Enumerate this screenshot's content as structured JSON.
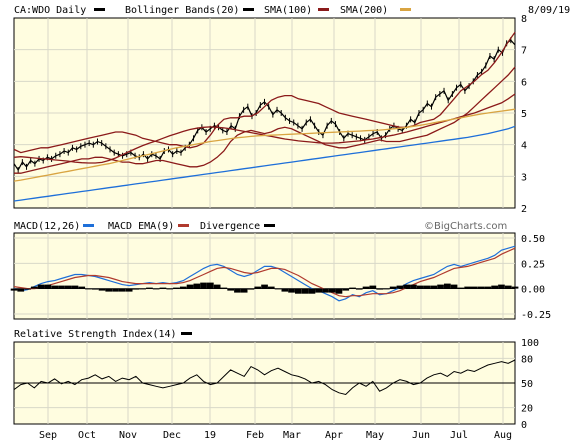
{
  "chart_data": {
    "type": "line",
    "symbol_label": "CA:WDO Daily",
    "date_label": "8/09/19",
    "watermark": "©BigCharts.com",
    "months": [
      "Sep",
      "Oct",
      "Nov",
      "Dec",
      "19",
      "Feb",
      "Mar",
      "Apr",
      "May",
      "Jun",
      "Jul",
      "Aug"
    ],
    "colors": {
      "price": "#000000",
      "bollinger": "#8b1a1a",
      "sma100": "#8b1a1a",
      "sma200": "#d9a441",
      "macd": "#1e6fd9",
      "macd_ema": "#b03a2e",
      "divergence": "#000000",
      "panel_bg": "#fffde0",
      "grid": "#d8d8c8"
    },
    "price_panel": {
      "ylim": [
        2,
        8
      ],
      "yticks": [
        2,
        3,
        4,
        5,
        6,
        7,
        8
      ],
      "legend": [
        {
          "label": "Bollinger Bands(20)",
          "key": "bollinger"
        },
        {
          "label": "SMA(100)",
          "key": "sma100"
        },
        {
          "label": "SMA(200)",
          "key": "sma200"
        }
      ],
      "series": [
        {
          "key": "price",
          "values": [
            3.4,
            3.2,
            3.45,
            3.3,
            3.5,
            3.4,
            3.55,
            3.5,
            3.6,
            3.55,
            3.65,
            3.7,
            3.8,
            3.75,
            3.9,
            3.85,
            3.95,
            4.0,
            4.05,
            4.0,
            4.1,
            4.05,
            3.95,
            3.85,
            3.75,
            3.7,
            3.65,
            3.7,
            3.75,
            3.65,
            3.6,
            3.7,
            3.55,
            3.7,
            3.65,
            3.55,
            3.8,
            3.85,
            3.7,
            3.8,
            3.75,
            3.9,
            4.0,
            4.2,
            4.45,
            4.55,
            4.4,
            4.5,
            4.6,
            4.55,
            4.45,
            4.4,
            4.6,
            4.5,
            4.9,
            5.1,
            5.2,
            4.9,
            5.0,
            5.25,
            5.35,
            5.2,
            4.95,
            5.1,
            5.0,
            4.85,
            4.75,
            4.7,
            4.6,
            4.5,
            4.7,
            4.8,
            4.6,
            4.4,
            4.3,
            4.6,
            4.75,
            4.65,
            4.4,
            4.2,
            4.35,
            4.3,
            4.25,
            4.2,
            4.15,
            4.25,
            4.35,
            4.4,
            4.2,
            4.3,
            4.5,
            4.6,
            4.5,
            4.45,
            4.6,
            4.8,
            4.7,
            5.0,
            5.1,
            5.3,
            5.2,
            5.5,
            5.6,
            5.7,
            5.4,
            5.6,
            5.8,
            5.9,
            5.7,
            5.85,
            6.0,
            6.2,
            6.3,
            6.5,
            6.8,
            6.7,
            7.0,
            6.9,
            7.2,
            7.3,
            7.15
          ]
        },
        {
          "key": "bollinger",
          "values": [
            3.85,
            3.75,
            3.8,
            3.85,
            3.9,
            3.9,
            3.95,
            4.0,
            4.05,
            4.1,
            4.15,
            4.2,
            4.25,
            4.3,
            4.35,
            4.4,
            4.4,
            4.35,
            4.3,
            4.2,
            4.15,
            4.1,
            4.05,
            4.0,
            4.0,
            3.95,
            3.9,
            3.95,
            4.05,
            4.3,
            4.6,
            4.8,
            4.85,
            4.85,
            4.9,
            4.9,
            5.0,
            5.2,
            5.4,
            5.5,
            5.55,
            5.55,
            5.45,
            5.4,
            5.35,
            5.3,
            5.2,
            5.1,
            5.0,
            4.95,
            4.9,
            4.85,
            4.8,
            4.75,
            4.7,
            4.65,
            4.6,
            4.55,
            4.55,
            4.6,
            4.7,
            4.75,
            4.8,
            4.95,
            5.2,
            5.45,
            5.7,
            5.85,
            6.0,
            6.2,
            6.35,
            6.6,
            6.9,
            7.25,
            7.55
          ]
        },
        {
          "key": "bollinger",
          "values": [
            3.1,
            3.1,
            3.15,
            3.2,
            3.25,
            3.3,
            3.35,
            3.4,
            3.45,
            3.5,
            3.55,
            3.55,
            3.6,
            3.6,
            3.55,
            3.5,
            3.45,
            3.45,
            3.4,
            3.4,
            3.45,
            3.5,
            3.5,
            3.45,
            3.4,
            3.35,
            3.3,
            3.3,
            3.35,
            3.45,
            3.6,
            3.8,
            4.1,
            4.3,
            4.4,
            4.45,
            4.4,
            4.35,
            4.4,
            4.5,
            4.55,
            4.5,
            4.4,
            4.3,
            4.2,
            4.1,
            4.0,
            3.95,
            3.9,
            3.9,
            3.95,
            4.0,
            4.05,
            4.1,
            4.15,
            4.1,
            4.1,
            4.1,
            4.15,
            4.2,
            4.25,
            4.3,
            4.4,
            4.5,
            4.6,
            4.7,
            4.85,
            5.0,
            5.2,
            5.4,
            5.6,
            5.8,
            6.0,
            6.2,
            6.45
          ]
        },
        {
          "key": "sma100",
          "values": [
            3.6,
            3.62,
            3.6,
            3.58,
            3.56,
            3.54,
            3.52,
            3.5,
            3.48,
            3.45,
            3.43,
            3.42,
            3.42,
            3.44,
            3.5,
            3.58,
            3.68,
            3.78,
            3.88,
            3.97,
            4.05,
            4.12,
            4.2,
            4.28,
            4.35,
            4.42,
            4.48,
            4.52,
            4.55,
            4.56,
            4.55,
            4.53,
            4.5,
            4.46,
            4.42,
            4.38,
            4.34,
            4.3,
            4.26,
            4.22,
            4.18,
            4.15,
            4.12,
            4.1,
            4.08,
            4.06,
            4.05,
            4.05,
            4.06,
            4.08,
            4.1,
            4.12,
            4.15,
            4.18,
            4.22,
            4.26,
            4.3,
            4.35,
            4.4,
            4.46,
            4.52,
            4.58,
            4.64,
            4.7,
            4.76,
            4.82,
            4.88,
            4.94,
            5.0,
            5.08,
            5.16,
            5.24,
            5.32,
            5.45,
            5.6
          ]
        },
        {
          "key": "sma200",
          "values": [
            2.85,
            2.88,
            2.92,
            2.96,
            3.0,
            3.04,
            3.08,
            3.12,
            3.16,
            3.2,
            3.24,
            3.28,
            3.32,
            3.36,
            3.4,
            3.45,
            3.5,
            3.55,
            3.6,
            3.65,
            3.7,
            3.75,
            3.8,
            3.85,
            3.9,
            3.94,
            3.98,
            4.02,
            4.06,
            4.1,
            4.13,
            4.16,
            4.19,
            4.22,
            4.24,
            4.26,
            4.28,
            4.29,
            4.3,
            4.31,
            4.32,
            4.33,
            4.34,
            4.35,
            4.36,
            4.37,
            4.38,
            4.39,
            4.4,
            4.41,
            4.42,
            4.43,
            4.44,
            4.45,
            4.46,
            4.48,
            4.5,
            4.52,
            4.55,
            4.58,
            4.61,
            4.65,
            4.69,
            4.73,
            4.77,
            4.81,
            4.85,
            4.89,
            4.93,
            4.97,
            5.0,
            5.03,
            5.06,
            5.09,
            5.12
          ]
        },
        {
          "key": "macd",
          "values": [
            2.22,
            2.25,
            2.28,
            2.31,
            2.34,
            2.37,
            2.4,
            2.43,
            2.46,
            2.49,
            2.52,
            2.55,
            2.58,
            2.61,
            2.64,
            2.67,
            2.7,
            2.73,
            2.76,
            2.79,
            2.82,
            2.85,
            2.88,
            2.91,
            2.94,
            2.97,
            3.0,
            3.03,
            3.06,
            3.09,
            3.12,
            3.15,
            3.18,
            3.21,
            3.24,
            3.27,
            3.3,
            3.33,
            3.36,
            3.39,
            3.42,
            3.45,
            3.48,
            3.51,
            3.54,
            3.57,
            3.6,
            3.63,
            3.66,
            3.69,
            3.72,
            3.75,
            3.78,
            3.81,
            3.84,
            3.87,
            3.9,
            3.93,
            3.96,
            3.99,
            4.02,
            4.05,
            4.08,
            4.11,
            4.14,
            4.17,
            4.2,
            4.23,
            4.27,
            4.31,
            4.35,
            4.4,
            4.45,
            4.5,
            4.58
          ]
        }
      ]
    },
    "macd_panel": {
      "title": "MACD(12,26)",
      "legend": [
        {
          "label": "MACD EMA(9)",
          "key": "macd_ema"
        },
        {
          "label": "Divergence",
          "key": "divergence"
        }
      ],
      "ylim": [
        -0.3,
        0.55
      ],
      "yticks": [
        0.5,
        0.25,
        0.0,
        -0.25
      ],
      "ytick_labels": [
        "0.50",
        "0.25",
        "0.00",
        "-0.25"
      ],
      "series": [
        {
          "key": "macd",
          "values": [
            0.0,
            -0.02,
            -0.01,
            0.02,
            0.05,
            0.07,
            0.08,
            0.1,
            0.12,
            0.14,
            0.14,
            0.13,
            0.12,
            0.1,
            0.08,
            0.06,
            0.04,
            0.03,
            0.04,
            0.05,
            0.06,
            0.05,
            0.06,
            0.05,
            0.06,
            0.08,
            0.12,
            0.16,
            0.2,
            0.23,
            0.24,
            0.22,
            0.18,
            0.14,
            0.12,
            0.14,
            0.18,
            0.22,
            0.22,
            0.2,
            0.16,
            0.12,
            0.08,
            0.04,
            0.0,
            -0.02,
            -0.05,
            -0.08,
            -0.12,
            -0.1,
            -0.06,
            -0.08,
            -0.04,
            -0.02,
            -0.06,
            -0.05,
            -0.02,
            0.01,
            0.05,
            0.08,
            0.1,
            0.12,
            0.14,
            0.18,
            0.22,
            0.24,
            0.22,
            0.24,
            0.26,
            0.28,
            0.3,
            0.33,
            0.38,
            0.4,
            0.42
          ]
        },
        {
          "key": "macd_ema",
          "values": [
            0.02,
            0.01,
            0.0,
            0.0,
            0.01,
            0.03,
            0.05,
            0.07,
            0.09,
            0.11,
            0.12,
            0.13,
            0.13,
            0.12,
            0.11,
            0.09,
            0.07,
            0.06,
            0.05,
            0.05,
            0.05,
            0.05,
            0.05,
            0.05,
            0.05,
            0.06,
            0.08,
            0.11,
            0.14,
            0.17,
            0.2,
            0.21,
            0.2,
            0.18,
            0.16,
            0.15,
            0.16,
            0.18,
            0.2,
            0.2,
            0.19,
            0.16,
            0.13,
            0.09,
            0.05,
            0.02,
            -0.01,
            -0.04,
            -0.07,
            -0.08,
            -0.07,
            -0.07,
            -0.06,
            -0.05,
            -0.05,
            -0.05,
            -0.04,
            -0.02,
            0.01,
            0.04,
            0.07,
            0.09,
            0.11,
            0.14,
            0.17,
            0.2,
            0.21,
            0.22,
            0.24,
            0.26,
            0.28,
            0.3,
            0.34,
            0.37,
            0.4
          ]
        },
        {
          "key": "divergence",
          "values": [
            -0.02,
            -0.03,
            -0.01,
            0.02,
            0.04,
            0.04,
            0.03,
            0.03,
            0.03,
            0.03,
            0.02,
            0.0,
            -0.01,
            -0.02,
            -0.03,
            -0.03,
            -0.03,
            -0.03,
            -0.01,
            0.0,
            0.01,
            0.0,
            0.01,
            0.0,
            0.01,
            0.02,
            0.04,
            0.05,
            0.06,
            0.06,
            0.04,
            0.01,
            -0.02,
            -0.04,
            -0.04,
            -0.01,
            0.02,
            0.04,
            0.02,
            0.0,
            -0.03,
            -0.04,
            -0.05,
            -0.05,
            -0.05,
            -0.04,
            -0.04,
            -0.04,
            -0.05,
            -0.02,
            0.01,
            -0.01,
            0.02,
            0.03,
            -0.01,
            0.0,
            0.02,
            0.03,
            0.04,
            0.04,
            0.03,
            0.03,
            0.03,
            0.04,
            0.05,
            0.04,
            0.01,
            0.02,
            0.02,
            0.02,
            0.02,
            0.03,
            0.04,
            0.03,
            0.02
          ]
        }
      ]
    },
    "rsi_panel": {
      "title": "Relative Strength Index(14)",
      "ylim": [
        0,
        100
      ],
      "yticks": [
        100,
        80,
        50,
        20,
        0
      ],
      "ytick_labels": [
        "100",
        "80",
        "50",
        "20",
        "0"
      ],
      "reference_level": 50,
      "series": [
        {
          "key": "price",
          "values": [
            42,
            48,
            50,
            44,
            52,
            50,
            55,
            49,
            52,
            48,
            54,
            56,
            60,
            55,
            58,
            52,
            56,
            54,
            58,
            50,
            48,
            46,
            44,
            46,
            48,
            50,
            56,
            60,
            52,
            48,
            50,
            58,
            66,
            62,
            58,
            70,
            66,
            60,
            65,
            68,
            64,
            60,
            58,
            55,
            50,
            52,
            48,
            42,
            38,
            36,
            44,
            50,
            46,
            52,
            40,
            44,
            50,
            54,
            52,
            48,
            50,
            56,
            60,
            62,
            58,
            64,
            62,
            66,
            64,
            68,
            72,
            74,
            76,
            74,
            78
          ]
        }
      ]
    }
  }
}
